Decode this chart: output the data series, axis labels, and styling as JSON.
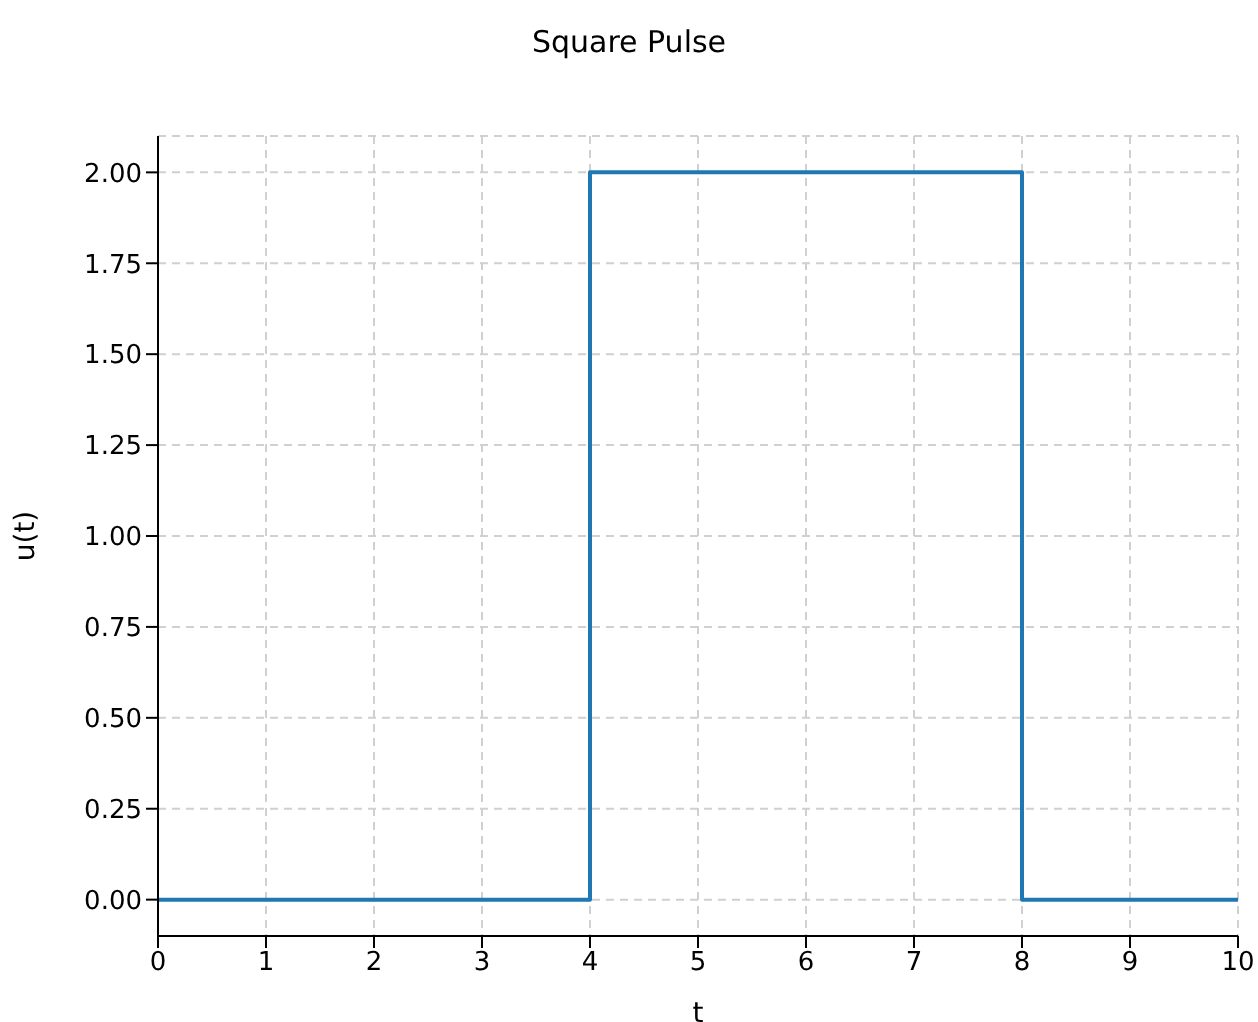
{
  "chart_data": {
    "type": "step",
    "title": "Square Pulse",
    "xlabel": "t",
    "ylabel": "u(t)",
    "x": [
      0,
      4,
      8,
      10
    ],
    "series": [
      {
        "color": "#1f77b4",
        "values": [
          0,
          2,
          0,
          0
        ]
      }
    ],
    "xlim": [
      0,
      10
    ],
    "xticks": [
      0,
      1,
      2,
      3,
      4,
      5,
      6,
      7,
      8,
      9,
      10
    ],
    "ylim": [
      -0.1,
      2.1
    ],
    "yticks": [
      {
        "value": 0,
        "label": "0.00"
      },
      {
        "value": 0.25,
        "label": "0.25"
      },
      {
        "value": 0.5,
        "label": "0.50"
      },
      {
        "value": 0.75,
        "label": "0.75"
      },
      {
        "value": 1,
        "label": "1.00"
      },
      {
        "value": 1.25,
        "label": "1.25"
      },
      {
        "value": 1.5,
        "label": "1.50"
      },
      {
        "value": 1.75,
        "label": "1.75"
      },
      {
        "value": 2,
        "label": "2.00"
      }
    ],
    "grid": true,
    "line_style": "solid",
    "marker": "none",
    "legend": false
  }
}
